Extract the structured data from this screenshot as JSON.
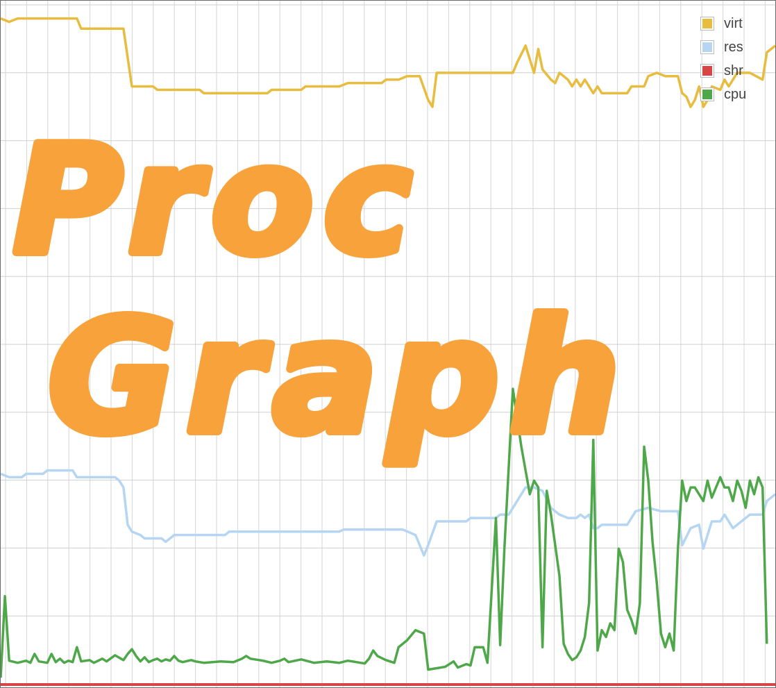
{
  "logo": {
    "line1": "Proc",
    "line2": "Graph"
  },
  "chart_data": {
    "type": "line",
    "title": "",
    "xlabel": "",
    "ylabel": "",
    "ylim": [
      0,
      100
    ],
    "xlim": [
      0,
      183
    ],
    "grid": true,
    "legend_position": "top-right",
    "series": [
      {
        "name": "virt",
        "color": "#e8bc3f",
        "points": [
          [
            0,
            98
          ],
          [
            2,
            97.5
          ],
          [
            4,
            98
          ],
          [
            18,
            98
          ],
          [
            19,
            96.5
          ],
          [
            29,
            96.5
          ],
          [
            31,
            88
          ],
          [
            36,
            88
          ],
          [
            37,
            87.5
          ],
          [
            47,
            87.5
          ],
          [
            48,
            87
          ],
          [
            63,
            87
          ],
          [
            64,
            87.5
          ],
          [
            71,
            87.5
          ],
          [
            72,
            88
          ],
          [
            80,
            88
          ],
          [
            82,
            88.5
          ],
          [
            90,
            88.5
          ],
          [
            91,
            89
          ],
          [
            94,
            89
          ],
          [
            96,
            89.5
          ],
          [
            99,
            89.5
          ],
          [
            101,
            86
          ],
          [
            102,
            85
          ],
          [
            103,
            90
          ],
          [
            121,
            90
          ],
          [
            122,
            91.5
          ],
          [
            124,
            94
          ],
          [
            126,
            90
          ],
          [
            127,
            93.5
          ],
          [
            128,
            90.5
          ],
          [
            130,
            89
          ],
          [
            131,
            88.5
          ],
          [
            132,
            90
          ],
          [
            134,
            89
          ],
          [
            135,
            88
          ],
          [
            136,
            89
          ],
          [
            137,
            88
          ],
          [
            138,
            89
          ],
          [
            140,
            87
          ],
          [
            141,
            88
          ],
          [
            142,
            87
          ],
          [
            148,
            87
          ],
          [
            149,
            88
          ],
          [
            152,
            88
          ],
          [
            153,
            89.5
          ],
          [
            155,
            90
          ],
          [
            157,
            89.5
          ],
          [
            160,
            89.5
          ],
          [
            161,
            87
          ],
          [
            162,
            86.5
          ],
          [
            163,
            85
          ],
          [
            164,
            86
          ],
          [
            165,
            88
          ],
          [
            166,
            85
          ],
          [
            167,
            86
          ],
          [
            168,
            88
          ],
          [
            170,
            87.5
          ],
          [
            171,
            89
          ],
          [
            172,
            88
          ],
          [
            173,
            89
          ],
          [
            174,
            90
          ],
          [
            176,
            90
          ],
          [
            177,
            90
          ],
          [
            180,
            89
          ],
          [
            181,
            93
          ],
          [
            183,
            94
          ]
        ]
      },
      {
        "name": "res",
        "color": "#b5d5f2",
        "points": [
          [
            0,
            31
          ],
          [
            2,
            30.5
          ],
          [
            5,
            30.5
          ],
          [
            6,
            31
          ],
          [
            10,
            31
          ],
          [
            11,
            31.5
          ],
          [
            17,
            31.5
          ],
          [
            18,
            30.5
          ],
          [
            25,
            30.5
          ],
          [
            27,
            30.5
          ],
          [
            28,
            30
          ],
          [
            29,
            29
          ],
          [
            30,
            23.5
          ],
          [
            31,
            22.5
          ],
          [
            33,
            22
          ],
          [
            34,
            21.5
          ],
          [
            38,
            21.5
          ],
          [
            39,
            21
          ],
          [
            40,
            21.5
          ],
          [
            41,
            22
          ],
          [
            53,
            22
          ],
          [
            54,
            22.5
          ],
          [
            80,
            22.5
          ],
          [
            81,
            22.8
          ],
          [
            95,
            22.8
          ],
          [
            98,
            22
          ],
          [
            100,
            19
          ],
          [
            101,
            20.5
          ],
          [
            103,
            24
          ],
          [
            110,
            24
          ],
          [
            111,
            24.5
          ],
          [
            117,
            24.5
          ],
          [
            118,
            25
          ],
          [
            120,
            25
          ],
          [
            122,
            27
          ],
          [
            124,
            29
          ],
          [
            126,
            29
          ],
          [
            128,
            28.5
          ],
          [
            130,
            26
          ],
          [
            132,
            25
          ],
          [
            134,
            24.5
          ],
          [
            136,
            24.5
          ],
          [
            137,
            25
          ],
          [
            138,
            24.5
          ],
          [
            139,
            25
          ],
          [
            140,
            23
          ],
          [
            141,
            23
          ],
          [
            142,
            23.5
          ],
          [
            148,
            23.5
          ],
          [
            150,
            25.5
          ],
          [
            153,
            26
          ],
          [
            156,
            25.5
          ],
          [
            160,
            25.5
          ],
          [
            161,
            20.5
          ],
          [
            163,
            23
          ],
          [
            165,
            23.5
          ],
          [
            166,
            20
          ],
          [
            168,
            24
          ],
          [
            170,
            24
          ],
          [
            171,
            25
          ],
          [
            173,
            23
          ],
          [
            175,
            24
          ],
          [
            177,
            25
          ],
          [
            180,
            25
          ],
          [
            181,
            27
          ],
          [
            183,
            28
          ]
        ]
      },
      {
        "name": "shr",
        "color": "#d94444",
        "points": [
          [
            0,
            0
          ],
          [
            183,
            0
          ]
        ]
      },
      {
        "name": "cpu",
        "color": "#4ea84a",
        "points": [
          [
            0,
            1
          ],
          [
            1,
            13
          ],
          [
            2,
            3.5
          ],
          [
            4,
            3.2
          ],
          [
            6,
            3.5
          ],
          [
            7,
            3.2
          ],
          [
            8,
            4.5
          ],
          [
            9,
            3.4
          ],
          [
            11,
            3.2
          ],
          [
            12,
            4.5
          ],
          [
            13,
            3.3
          ],
          [
            14,
            3.8
          ],
          [
            15,
            3.2
          ],
          [
            16,
            3.5
          ],
          [
            17,
            3.3
          ],
          [
            18,
            5.5
          ],
          [
            19,
            3.4
          ],
          [
            21,
            3.6
          ],
          [
            22,
            3.2
          ],
          [
            24,
            3.8
          ],
          [
            25,
            3.4
          ],
          [
            27,
            4.3
          ],
          [
            29,
            3.6
          ],
          [
            30,
            4.5
          ],
          [
            31,
            5.2
          ],
          [
            32,
            4.2
          ],
          [
            33,
            3.4
          ],
          [
            34,
            4.0
          ],
          [
            35,
            3.3
          ],
          [
            36,
            3.6
          ],
          [
            37,
            3.8
          ],
          [
            38,
            3.4
          ],
          [
            39,
            3.7
          ],
          [
            40,
            3.5
          ],
          [
            41,
            4.2
          ],
          [
            42,
            3.5
          ],
          [
            43,
            3.3
          ],
          [
            45,
            3.6
          ],
          [
            46,
            3.4
          ],
          [
            48,
            3.2
          ],
          [
            50,
            3.3
          ],
          [
            52,
            3.4
          ],
          [
            55,
            3.3
          ],
          [
            57,
            3.8
          ],
          [
            58,
            4.2
          ],
          [
            59,
            3.8
          ],
          [
            62,
            3.5
          ],
          [
            64,
            3.2
          ],
          [
            66,
            3.5
          ],
          [
            67,
            3.8
          ],
          [
            68,
            3.3
          ],
          [
            71,
            3.7
          ],
          [
            74,
            3.2
          ],
          [
            77,
            3.4
          ],
          [
            80,
            3.2
          ],
          [
            82,
            3.5
          ],
          [
            84,
            3.3
          ],
          [
            86,
            3.1
          ],
          [
            87,
            3.8
          ],
          [
            88,
            5.0
          ],
          [
            89,
            4.2
          ],
          [
            91,
            3.6
          ],
          [
            93,
            3.2
          ],
          [
            94,
            5.5
          ],
          [
            96,
            6.5
          ],
          [
            98,
            8
          ],
          [
            100,
            7.5
          ],
          [
            101,
            2.2
          ],
          [
            103,
            2.4
          ],
          [
            105,
            2.6
          ],
          [
            107,
            3.4
          ],
          [
            108,
            2.5
          ],
          [
            110,
            3.0
          ],
          [
            111,
            2.8
          ],
          [
            112,
            5.5
          ],
          [
            114,
            5.5
          ],
          [
            115,
            3.2
          ],
          [
            117,
            24.5
          ],
          [
            118,
            5.8
          ],
          [
            119,
            20
          ],
          [
            121,
            43.5
          ],
          [
            123,
            35
          ],
          [
            125,
            28
          ],
          [
            126,
            30
          ],
          [
            127,
            29
          ],
          [
            128,
            5.5
          ],
          [
            129,
            28.5
          ],
          [
            130,
            25
          ],
          [
            131,
            20.5
          ],
          [
            132,
            16
          ],
          [
            133,
            6
          ],
          [
            134,
            4.5
          ],
          [
            135,
            3.6
          ],
          [
            136,
            4
          ],
          [
            137,
            5
          ],
          [
            138,
            7
          ],
          [
            139,
            12
          ],
          [
            140,
            36
          ],
          [
            141,
            5
          ],
          [
            142,
            8
          ],
          [
            143,
            7
          ],
          [
            144,
            9
          ],
          [
            145,
            8
          ],
          [
            146,
            20
          ],
          [
            147,
            18
          ],
          [
            148,
            11
          ],
          [
            149,
            9.5
          ],
          [
            150,
            7.5
          ],
          [
            151,
            12
          ],
          [
            152,
            35
          ],
          [
            153,
            30
          ],
          [
            154,
            21
          ],
          [
            155,
            15
          ],
          [
            156,
            7.5
          ],
          [
            157,
            5.5
          ],
          [
            158,
            7.5
          ],
          [
            159,
            5
          ],
          [
            160,
            20
          ],
          [
            161,
            30
          ],
          [
            162,
            27
          ],
          [
            163,
            29
          ],
          [
            164,
            29
          ],
          [
            165,
            28
          ],
          [
            166,
            27
          ],
          [
            167,
            30
          ],
          [
            168,
            27.5
          ],
          [
            169,
            29
          ],
          [
            170,
            30.5
          ],
          [
            171,
            29
          ],
          [
            172,
            29
          ],
          [
            173,
            27
          ],
          [
            174,
            30
          ],
          [
            175,
            28.5
          ],
          [
            176,
            26
          ],
          [
            177,
            30
          ],
          [
            178,
            28
          ],
          [
            179,
            30.5
          ],
          [
            180,
            29
          ],
          [
            181,
            6
          ]
        ]
      }
    ]
  }
}
